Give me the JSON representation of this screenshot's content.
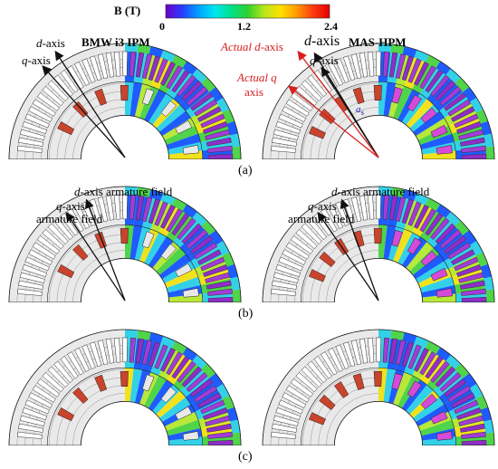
{
  "colorbar": {
    "label": "B (T)",
    "ticks": [
      "0",
      "1.2",
      "2.4"
    ],
    "stops": [
      "#6a00c8",
      "#2a3cff",
      "#00a0ff",
      "#00e6f0",
      "#00e08a",
      "#30d030",
      "#b6e61a",
      "#ffe000",
      "#ff9a00",
      "#ff3a10",
      "#e00000"
    ]
  },
  "panels": [
    {
      "name": "a",
      "caption": "(a)"
    },
    {
      "name": "b",
      "caption": "(b)"
    },
    {
      "name": "c",
      "caption": "(c)"
    }
  ],
  "labels": {
    "left_title": "BMW i3 IPM",
    "right_title": "MAS-HPM",
    "d_axis_prefix": "d",
    "d_axis_suffix": "-axis",
    "q_axis_prefix": "q",
    "q_axis_suffix": "-axis",
    "actual_d_prefix": "Actual d",
    "actual_d_suffix": "-axis",
    "actual_q_prefix": "Actual q",
    "actual_q_line2": "axis",
    "alpha_symbol": "a",
    "alpha_sub": "s",
    "d_arm_prefix": "d",
    "d_arm_suffix": "-axis armature field",
    "q_arm_prefix": "q",
    "q_arm_suffix": "-axis",
    "q_arm_line2": "armature field"
  },
  "colors": {
    "rotor_steel": "#e9e9e9",
    "slot_white": "#ffffff",
    "magnet_red": "#c8442c",
    "magnet_purple": "#a23cd8",
    "magnet_magenta": "#d54ad8",
    "field_blue": "#1f5cff",
    "field_cyan": "#33d1e8",
    "field_green": "#4fd44a",
    "field_yellow": "#f2e21e",
    "field_lime": "#b8e838",
    "arrow_red": "#d81e1e",
    "line_black": "#111111"
  }
}
